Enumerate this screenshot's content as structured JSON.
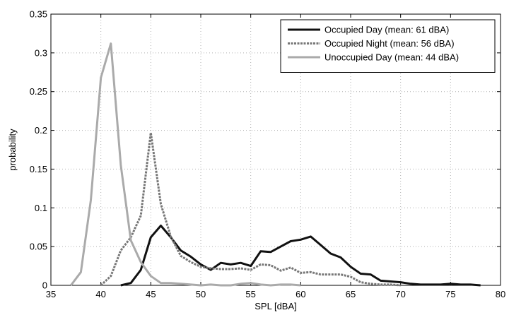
{
  "chart_data": {
    "type": "line",
    "xlabel": "SPL [dBA]",
    "ylabel": "probability",
    "xlim": [
      35,
      80
    ],
    "ylim": [
      0,
      0.35
    ],
    "xticks": [
      "35",
      "40",
      "45",
      "50",
      "55",
      "60",
      "65",
      "70",
      "75",
      "80"
    ],
    "yticks": [
      "0",
      "0.05",
      "0.1",
      "0.15",
      "0.2",
      "0.25",
      "0.3",
      "0.35"
    ],
    "grid": true,
    "legend_position": "top-right",
    "series": [
      {
        "name": "Occupied Day (mean: 61 dBA)",
        "color": "#111111",
        "style": "solid",
        "x": [
          42,
          43,
          44,
          45,
          46,
          47,
          48,
          49,
          50,
          51,
          52,
          53,
          54,
          55,
          56,
          57,
          58,
          59,
          60,
          61,
          62,
          63,
          64,
          65,
          66,
          67,
          68,
          69,
          70,
          71,
          72,
          73,
          74,
          75,
          76,
          77,
          78
        ],
        "y": [
          0,
          0.003,
          0.02,
          0.062,
          0.077,
          0.062,
          0.045,
          0.037,
          0.027,
          0.02,
          0.029,
          0.027,
          0.029,
          0.025,
          0.044,
          0.043,
          0.05,
          0.057,
          0.059,
          0.063,
          0.052,
          0.041,
          0.036,
          0.024,
          0.015,
          0.014,
          0.006,
          0.005,
          0.004,
          0.002,
          0.001,
          0.001,
          0.001,
          0.002,
          0.001,
          0.001,
          0
        ]
      },
      {
        "name": "Occupied Night (mean: 56 dBA)",
        "color": "#777777",
        "style": "dashed",
        "x": [
          40,
          41,
          42,
          43,
          44,
          45,
          46,
          47,
          48,
          49,
          50,
          51,
          52,
          53,
          54,
          55,
          56,
          57,
          58,
          59,
          60,
          61,
          62,
          63,
          64,
          65,
          66,
          67,
          68,
          69,
          70
        ],
        "y": [
          0,
          0.012,
          0.045,
          0.062,
          0.09,
          0.197,
          0.105,
          0.063,
          0.038,
          0.03,
          0.024,
          0.022,
          0.021,
          0.021,
          0.022,
          0.02,
          0.027,
          0.026,
          0.019,
          0.023,
          0.016,
          0.017,
          0.014,
          0.014,
          0.014,
          0.011,
          0.004,
          0.002,
          0.001,
          0.001,
          0
        ]
      },
      {
        "name": "Unoccupied Day (mean: 44 dBA)",
        "color": "#aaaaaa",
        "style": "solid",
        "x": [
          37,
          38,
          39,
          40,
          41,
          42,
          43,
          44,
          45,
          46,
          47,
          48,
          49,
          50,
          51,
          52,
          53,
          54,
          55,
          56,
          57,
          58,
          59,
          60
        ],
        "y": [
          0,
          0.017,
          0.11,
          0.268,
          0.312,
          0.155,
          0.058,
          0.03,
          0.012,
          0.003,
          0.003,
          0.002,
          0.001,
          0,
          0.001,
          0,
          0,
          0.002,
          0.003,
          0.001,
          0,
          0.001,
          0.001,
          0
        ]
      }
    ]
  }
}
